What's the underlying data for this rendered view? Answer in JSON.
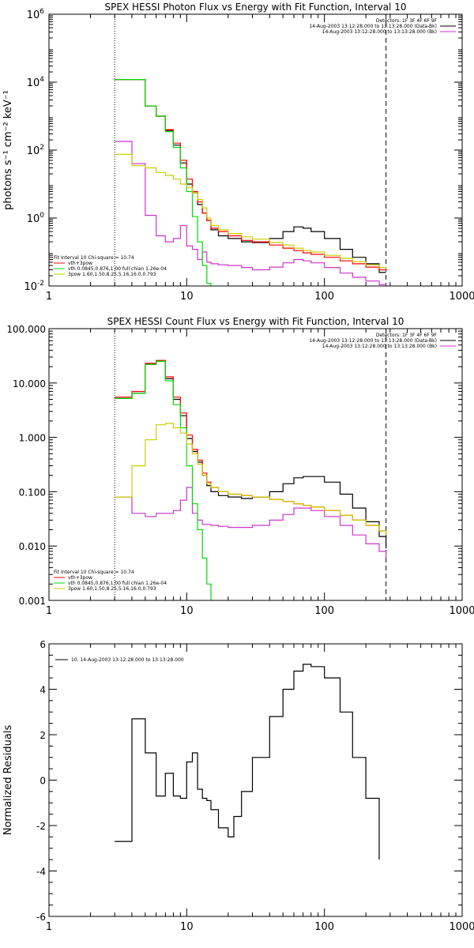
{
  "chart_data": [
    {
      "type": "line",
      "title": "SPEX HESSI Photon Flux vs Energy with Fit Function, Interval 10",
      "ylabel": "photons s⁻¹ cm⁻² keV⁻¹",
      "xlabel": "",
      "xscale": "log",
      "yscale": "log",
      "xlim": [
        1,
        1000
      ],
      "ylim": [
        0.01,
        1000000
      ],
      "xticks": [
        1,
        10,
        100,
        1000
      ],
      "xtick_labels": [
        "1",
        "10",
        "100",
        "1000"
      ],
      "yticks": [
        0.01,
        1,
        100,
        10000,
        1000000
      ],
      "ytick_labels": [
        {
          "base": "10",
          "exp": "-2"
        },
        {
          "base": "10",
          "exp": "0"
        },
        {
          "base": "10",
          "exp": "2"
        },
        {
          "base": "10",
          "exp": "4"
        },
        {
          "base": "10",
          "exp": "6"
        }
      ],
      "vlines": [
        {
          "x": 3,
          "style": "dotted"
        },
        {
          "x": 280,
          "style": "dashed"
        }
      ],
      "legend_top_right": [
        {
          "text": "Detectors: 1F 3F 4F 6F 9F",
          "color": ""
        },
        {
          "text": "14-Aug-2003 13:12:28.000 to 13:13:28.000 (Data-Bk)",
          "color": "#000000"
        },
        {
          "text": "14-Aug-2003 13:12:28.000 to 13:13:28.000 (Bk)",
          "color": "#cc33cc"
        }
      ],
      "legend_bottom_left": [
        {
          "text": "Fit Interval 10   Chi-square = 10.74",
          "color": ""
        },
        {
          "text": "vth+3pow",
          "color": "#ff0000"
        },
        {
          "text": "vth 0.0845,0.876,1.00  full chian 1.26e-04",
          "color": "#00dd00"
        },
        {
          "text": "3pow 1.60,1.50,8.25,5.16,16.0,0.793",
          "color": "#cccc00"
        }
      ],
      "series": [
        {
          "name": "Data-Bk",
          "color": "#000000",
          "x": [
            3,
            4,
            5,
            6,
            7,
            8,
            9,
            10,
            11,
            12,
            13,
            14,
            15,
            17,
            20,
            25,
            30,
            40,
            50,
            60,
            70,
            80,
            100,
            130,
            160,
            200,
            250,
            280
          ],
          "y": [
            12000,
            12000,
            2000,
            1000,
            380,
            140,
            42,
            10,
            5.5,
            2.5,
            1.4,
            0.85,
            0.45,
            0.3,
            0.25,
            0.2,
            0.19,
            0.25,
            0.4,
            0.55,
            0.5,
            0.4,
            0.25,
            0.12,
            0.07,
            0.045,
            0.025,
            0.025
          ]
        },
        {
          "name": "Bk",
          "color": "#cc33cc",
          "x": [
            3,
            4,
            5,
            6,
            7,
            8,
            9,
            10,
            11,
            12,
            13,
            14,
            15,
            17,
            20,
            25,
            30,
            40,
            50,
            60,
            70,
            80,
            100,
            130,
            160,
            200,
            250,
            280
          ],
          "y": [
            180,
            40,
            1.2,
            0.3,
            0.2,
            0.25,
            0.6,
            0.15,
            0.12,
            0.06,
            0.1,
            0.05,
            0.045,
            0.042,
            0.04,
            0.035,
            0.03,
            0.036,
            0.048,
            0.06,
            0.055,
            0.048,
            0.035,
            0.024,
            0.018,
            0.014,
            0.011,
            0.01
          ]
        },
        {
          "name": "vth+3pow",
          "color": "#ff0000",
          "x": [
            3,
            4,
            5,
            6,
            7,
            8,
            9,
            10,
            11,
            12,
            13,
            14,
            15,
            17,
            20,
            25,
            30,
            40,
            50,
            60,
            70,
            80,
            100,
            130,
            160,
            200,
            250,
            280
          ],
          "y": [
            12000,
            12000,
            2000,
            1000,
            400,
            160,
            50,
            14,
            6,
            3,
            1.4,
            0.85,
            0.5,
            0.4,
            0.3,
            0.22,
            0.2,
            0.16,
            0.13,
            0.11,
            0.095,
            0.085,
            0.07,
            0.055,
            0.045,
            0.036,
            0.03,
            0.028
          ]
        },
        {
          "name": "vth",
          "color": "#00dd00",
          "x": [
            3,
            4,
            5,
            6,
            7,
            8,
            9,
            10,
            11,
            12,
            13,
            14,
            15
          ],
          "y": [
            12000,
            12000,
            2000,
            1000,
            350,
            120,
            30,
            6,
            1.1,
            0.2,
            0.04,
            0.012,
            0.01
          ]
        },
        {
          "name": "3pow",
          "color": "#cccc00",
          "x": [
            3,
            4,
            5,
            6,
            7,
            8,
            9,
            10,
            11,
            12,
            13,
            14,
            15,
            17,
            20,
            25,
            30,
            40,
            50,
            60,
            70,
            80,
            100,
            130,
            160,
            200,
            250,
            280
          ],
          "y": [
            75,
            35,
            30,
            22,
            18,
            14,
            10,
            8,
            5.5,
            3.5,
            2,
            1,
            0.6,
            0.45,
            0.35,
            0.28,
            0.24,
            0.19,
            0.16,
            0.13,
            0.11,
            0.1,
            0.08,
            0.065,
            0.052,
            0.042,
            0.035,
            0.032
          ]
        }
      ]
    },
    {
      "type": "line",
      "title": "SPEX HESSI Count Flux vs Energy with Fit Function, Interval 10",
      "xlabel": "",
      "ylabel": "",
      "xscale": "log",
      "yscale": "log",
      "xlim": [
        1,
        1000
      ],
      "ylim": [
        0.001,
        100
      ],
      "xticks": [
        1,
        10,
        100,
        1000
      ],
      "xtick_labels": [
        "1",
        "10",
        "100",
        "1000"
      ],
      "yticks": [
        0.001,
        0.01,
        0.1,
        1,
        10,
        100
      ],
      "ytick_labels": [
        "0.001",
        "0.010",
        "0.100",
        "1.000",
        "10.000",
        "100.000"
      ],
      "vlines": [
        {
          "x": 3,
          "style": "dotted"
        },
        {
          "x": 280,
          "style": "dashed"
        }
      ],
      "legend_top_right": [
        {
          "text": "Detectors: 1F 3F 4F 6F 9F",
          "color": ""
        },
        {
          "text": "14-Aug-2003 13:12:28.000 to 13:13:28.000 (Data-Bk)",
          "color": "#000000"
        },
        {
          "text": "14-Aug-2003 13:12:28.000 to 13:13:28.000 (Bk)",
          "color": "#cc33cc"
        }
      ],
      "legend_bottom_left": [
        {
          "text": "Fit Interval 10   Chi-square = 10.74",
          "color": ""
        },
        {
          "text": "vth+3pow",
          "color": "#ff0000"
        },
        {
          "text": "vth 0.0845,0.876,1.00  full chian 1.26e-04",
          "color": "#00dd00"
        },
        {
          "text": "3pow 1.60,1.50,8.25,5.16,16.0,0.793",
          "color": "#cccc00"
        }
      ],
      "series": [
        {
          "name": "Data-Bk",
          "color": "#000000",
          "x": [
            3,
            4,
            5,
            6,
            7,
            8,
            9,
            10,
            11,
            12,
            13,
            14,
            15,
            17,
            20,
            25,
            30,
            40,
            50,
            60,
            70,
            80,
            100,
            130,
            160,
            200,
            250,
            280
          ],
          "y": [
            5.2,
            6.5,
            22,
            25,
            12,
            5,
            2.5,
            0.95,
            0.55,
            0.35,
            0.2,
            0.13,
            0.1,
            0.085,
            0.08,
            0.075,
            0.08,
            0.1,
            0.14,
            0.18,
            0.19,
            0.19,
            0.15,
            0.09,
            0.05,
            0.028,
            0.015,
            0.009
          ]
        },
        {
          "name": "Bk",
          "color": "#cc33cc",
          "x": [
            3,
            4,
            5,
            6,
            7,
            8,
            9,
            10,
            11,
            12,
            13,
            14,
            15,
            17,
            20,
            25,
            30,
            40,
            50,
            60,
            70,
            80,
            100,
            130,
            160,
            200,
            250,
            280
          ],
          "y": [
            0.08,
            0.04,
            0.035,
            0.04,
            0.04,
            0.045,
            0.07,
            0.12,
            0.04,
            0.03,
            0.025,
            0.025,
            0.024,
            0.023,
            0.022,
            0.022,
            0.024,
            0.03,
            0.038,
            0.05,
            0.05,
            0.045,
            0.035,
            0.024,
            0.016,
            0.011,
            0.008,
            0.006
          ]
        },
        {
          "name": "vth+3pow",
          "color": "#ff0000",
          "x": [
            3,
            4,
            5,
            6,
            7,
            8,
            9,
            10,
            11,
            12,
            13,
            14,
            15,
            17,
            20,
            25,
            30,
            40,
            50,
            60,
            70,
            80,
            100,
            130,
            160,
            200,
            250,
            280
          ],
          "y": [
            5.5,
            7,
            23,
            26,
            13,
            5.5,
            2.8,
            1.1,
            0.6,
            0.38,
            0.22,
            0.15,
            0.12,
            0.1,
            0.09,
            0.085,
            0.08,
            0.072,
            0.066,
            0.06,
            0.056,
            0.052,
            0.045,
            0.037,
            0.03,
            0.024,
            0.019,
            0.016
          ]
        },
        {
          "name": "vth",
          "color": "#00dd00",
          "x": [
            3,
            4,
            5,
            6,
            7,
            8,
            9,
            10,
            11,
            12,
            13,
            14,
            15
          ],
          "y": [
            5.2,
            6.5,
            22,
            25,
            11,
            4,
            1.5,
            0.3,
            0.06,
            0.02,
            0.006,
            0.002,
            0.001
          ]
        },
        {
          "name": "3pow",
          "color": "#cccc00",
          "x": [
            3,
            4,
            5,
            6,
            7,
            8,
            9,
            10,
            11,
            12,
            13,
            14,
            15,
            17,
            20,
            25,
            30,
            40,
            50,
            60,
            70,
            80,
            100,
            130,
            160,
            200,
            250,
            280
          ],
          "y": [
            0.08,
            0.3,
            0.9,
            1.7,
            1.8,
            1.5,
            1.2,
            0.75,
            0.5,
            0.32,
            0.2,
            0.14,
            0.12,
            0.1,
            0.09,
            0.085,
            0.08,
            0.072,
            0.066,
            0.06,
            0.056,
            0.052,
            0.045,
            0.037,
            0.03,
            0.024,
            0.019,
            0.016
          ]
        }
      ]
    },
    {
      "type": "line",
      "title": "",
      "xlabel": "",
      "ylabel": "Normalized Residuals",
      "xscale": "log",
      "yscale": "linear",
      "xlim": [
        1,
        1000
      ],
      "ylim": [
        -6,
        6
      ],
      "xticks": [
        1,
        10,
        100,
        1000
      ],
      "xtick_labels": [
        "1",
        "10",
        "100",
        "1000"
      ],
      "yticks": [
        -6,
        -4,
        -2,
        0,
        2,
        4,
        6
      ],
      "ytick_labels": [
        "-6",
        "-4",
        "-2",
        "0",
        "2",
        "4",
        "6"
      ],
      "legend_top_left": [
        {
          "text": "10. 14-Aug-2003 13:12:28.000 to 13:13:28.000",
          "color": "#000000"
        }
      ],
      "series": [
        {
          "name": "",
          "color": "#000000",
          "x": [
            3,
            4,
            5,
            6,
            7,
            8,
            9,
            10,
            11,
            12,
            13,
            14,
            15,
            17,
            20,
            22,
            25,
            30,
            40,
            50,
            60,
            70,
            80,
            100,
            130,
            160,
            200,
            250
          ],
          "y": [
            -2.7,
            2.7,
            1.2,
            -0.7,
            0.3,
            -0.7,
            -0.8,
            0.8,
            1.2,
            -0.4,
            -0.8,
            -0.9,
            -1.3,
            -2.1,
            -2.5,
            -1.6,
            -0.5,
            1.0,
            2.8,
            4.0,
            4.8,
            5.1,
            5.0,
            4.5,
            3.0,
            1.0,
            -0.8,
            -3.5
          ]
        }
      ]
    }
  ]
}
